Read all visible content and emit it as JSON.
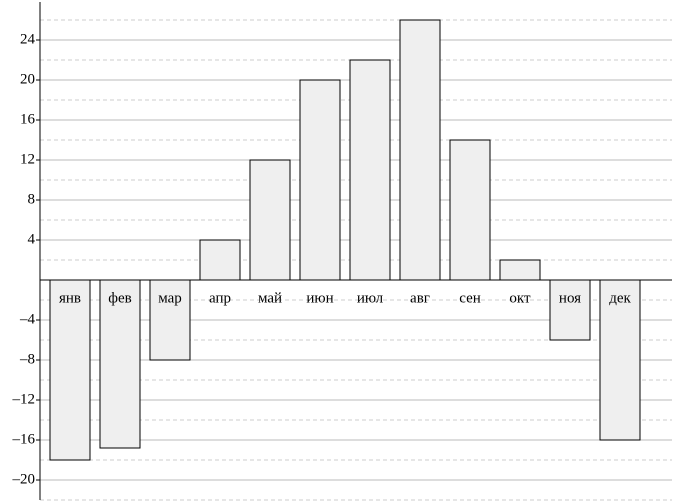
{
  "chart_data": {
    "type": "bar",
    "categories": [
      "янв",
      "фев",
      "мар",
      "апр",
      "май",
      "июн",
      "июл",
      "авг",
      "сен",
      "окт",
      "ноя",
      "дек"
    ],
    "values": [
      -18,
      -16.8,
      -8,
      4,
      12,
      20,
      22,
      26,
      14,
      2,
      -6,
      -16
    ],
    "color": "#efefef",
    "ylim": [
      -22,
      27.5
    ],
    "yticks": [
      {
        "value": -20,
        "label": "–20"
      },
      {
        "value": -16,
        "label": "–16"
      },
      {
        "value": -12,
        "label": "–12"
      },
      {
        "value": -8,
        "label": "–8"
      },
      {
        "value": -4,
        "label": "–4"
      },
      4,
      8,
      12,
      16,
      20,
      24
    ],
    "grid": true
  }
}
